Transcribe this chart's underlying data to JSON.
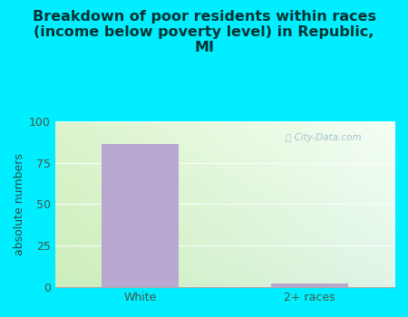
{
  "title": "Breakdown of poor residents within races\n(income below poverty level) in Republic,\nMI",
  "categories": [
    "White",
    "2+ races"
  ],
  "values": [
    86,
    2
  ],
  "bar_color": "#b8a8d0",
  "ylabel": "absolute numbers",
  "ylim": [
    0,
    100
  ],
  "yticks": [
    0,
    25,
    50,
    75,
    100
  ],
  "bg_color": "#00eeff",
  "plot_bg_left": "#cceebb",
  "plot_bg_right": "#eef8f0",
  "title_color": "#003333",
  "axis_label_color": "#2a4a4a",
  "tick_label_color": "#445544",
  "grid_color": "#ccddcc",
  "watermark_color": "#99bbcc",
  "title_fontsize": 11.5,
  "ylabel_fontsize": 9,
  "tick_fontsize": 9,
  "bar_width": 0.45
}
